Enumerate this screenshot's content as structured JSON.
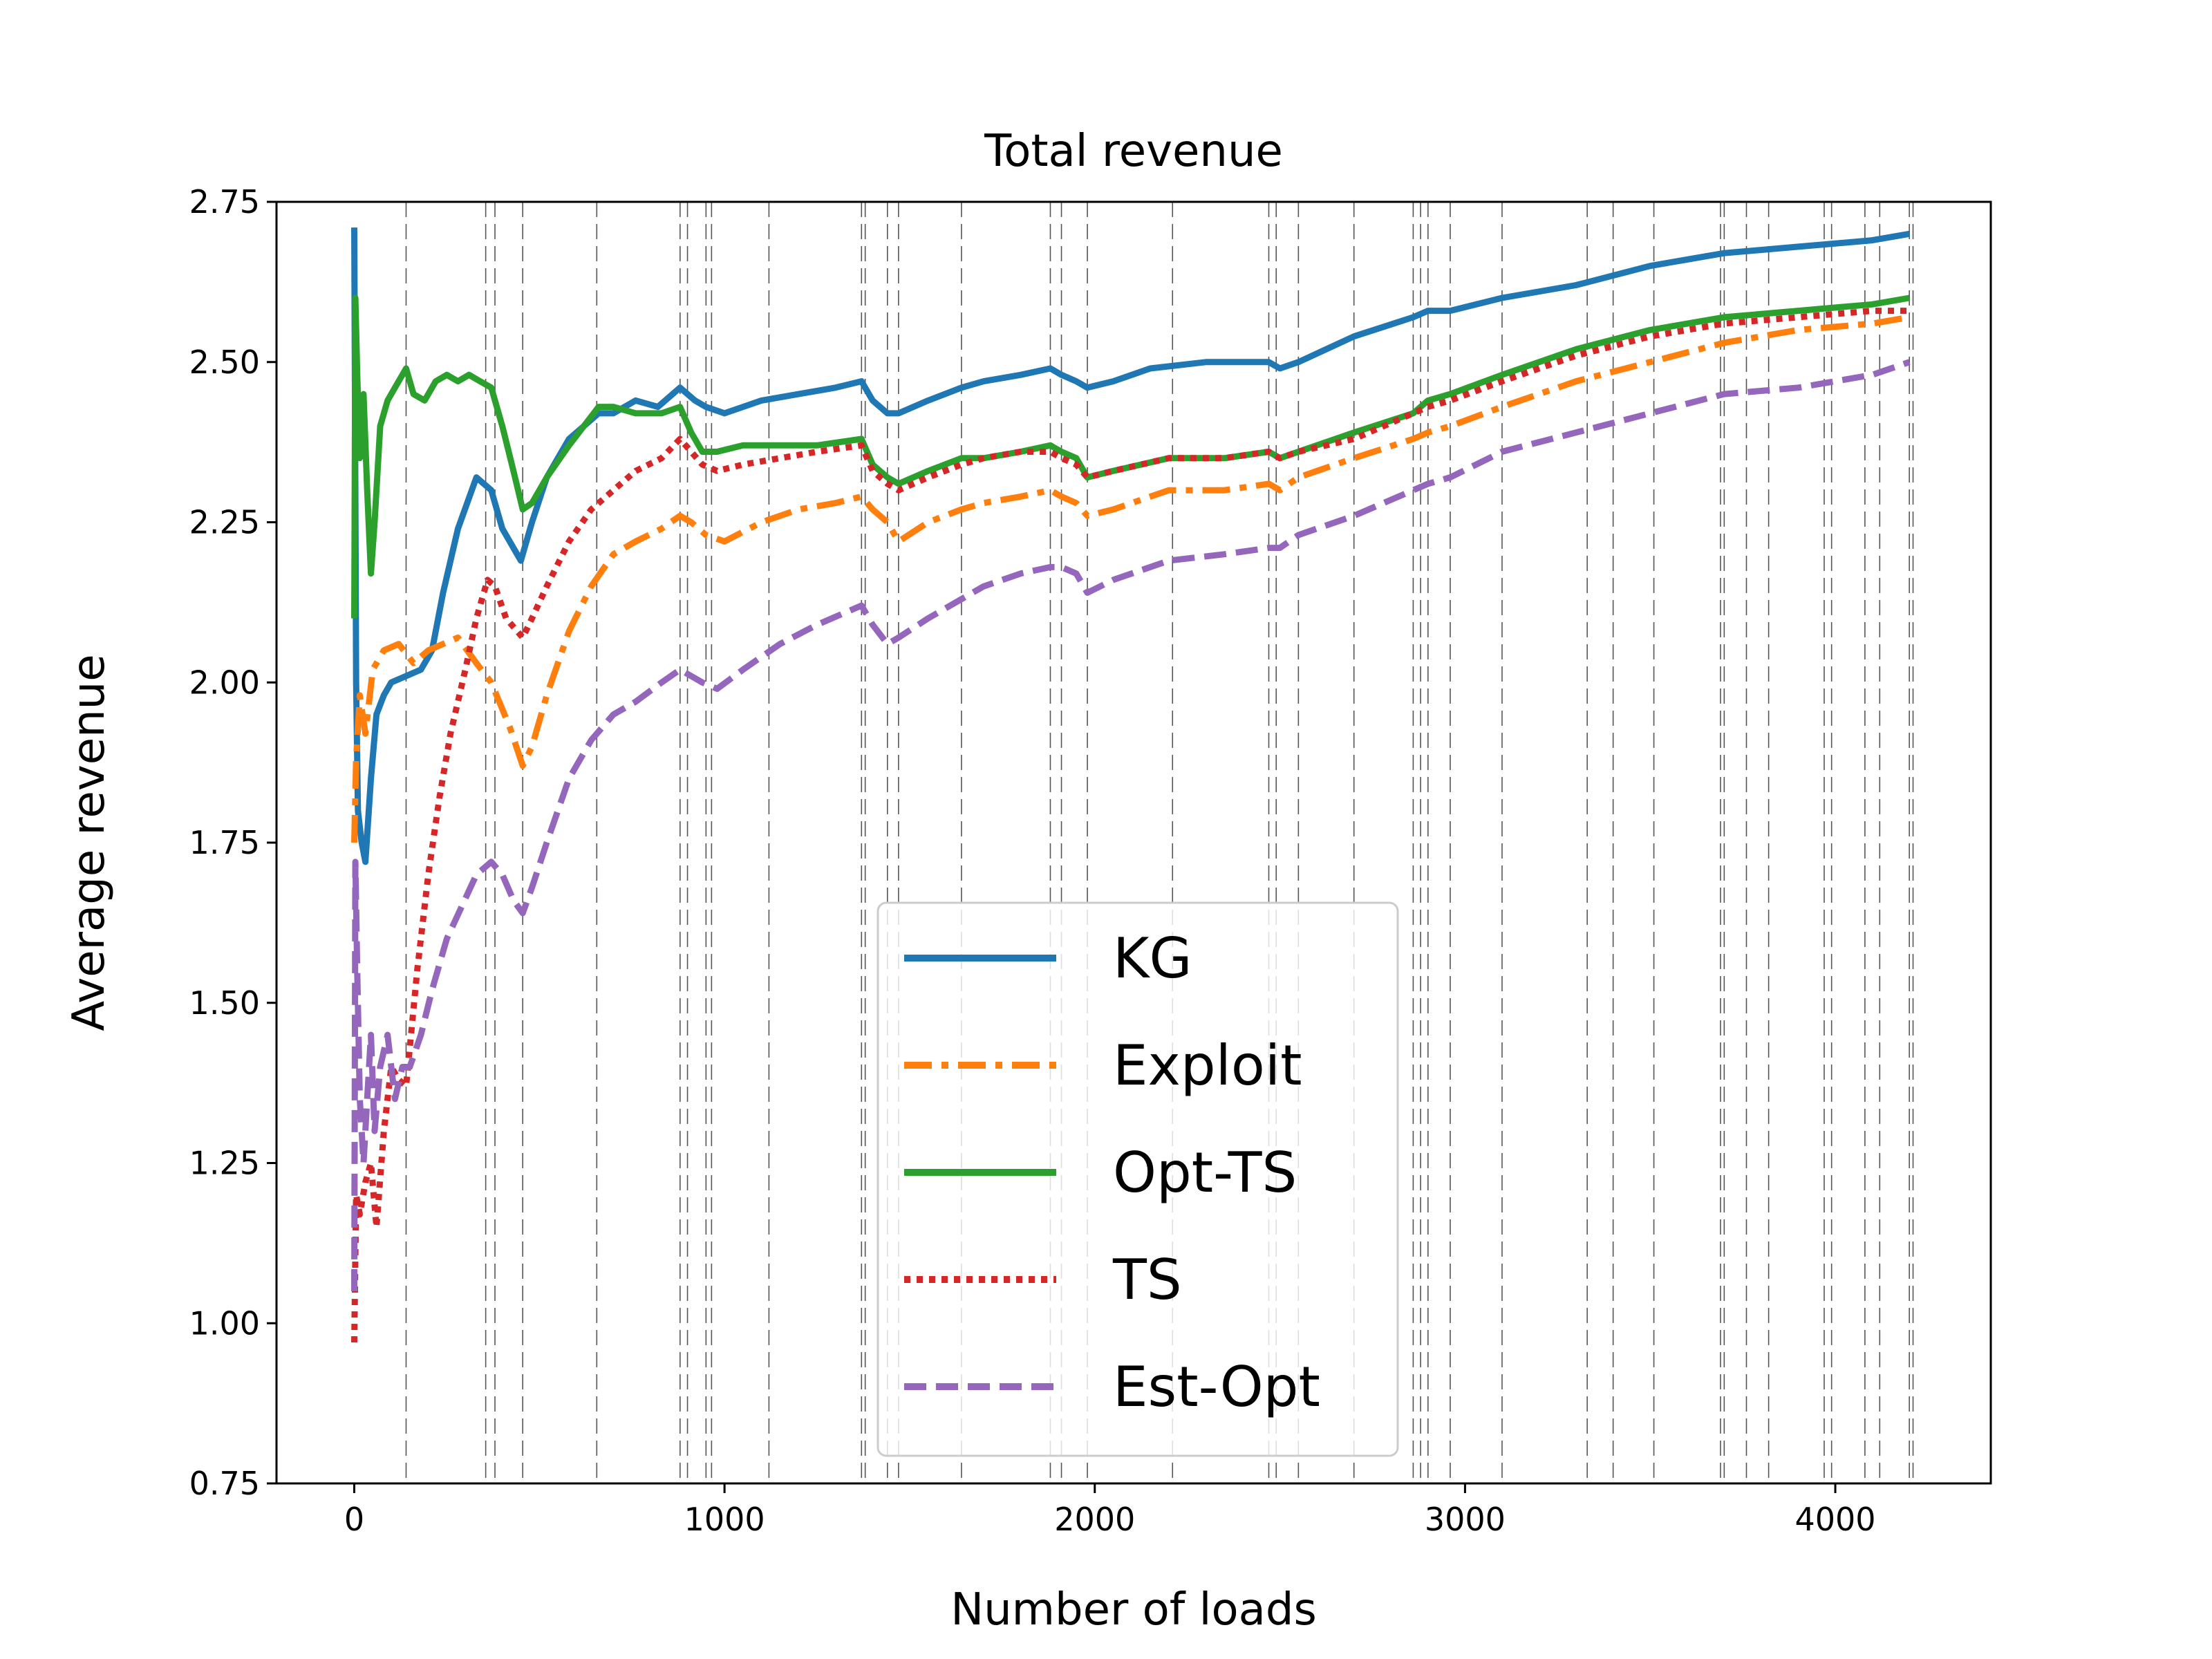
{
  "chart_data": {
    "type": "line",
    "title": "Total revenue",
    "xlabel": "Number of loads",
    "ylabel": "Average revenue",
    "xlim": [
      -210,
      4420
    ],
    "ylim": [
      0.75,
      2.75
    ],
    "xticks": [
      0,
      1000,
      2000,
      3000,
      4000
    ],
    "xtick_labels": [
      "0",
      "1000",
      "2000",
      "3000",
      "4000"
    ],
    "yticks": [
      0.75,
      1.0,
      1.25,
      1.5,
      1.75,
      2.0,
      2.25,
      2.5,
      2.75
    ],
    "ytick_labels": [
      "0.75",
      "1.00",
      "1.25",
      "1.50",
      "1.75",
      "2.00",
      "2.25",
      "2.50",
      "2.75"
    ],
    "vlines": [
      140,
      355,
      380,
      455,
      655,
      880,
      900,
      950,
      965,
      1120,
      1370,
      1380,
      1440,
      1470,
      1640,
      1880,
      1910,
      1980,
      2210,
      2470,
      2490,
      2550,
      2700,
      2860,
      2880,
      2900,
      2960,
      3100,
      3330,
      3400,
      3510,
      3690,
      3700,
      3760,
      3820,
      3970,
      3990,
      4080,
      4120,
      4200,
      4210
    ],
    "legend_position": "lower-right",
    "series": [
      {
        "name": "KG",
        "color": "#1f77b4",
        "style": "solid",
        "x": [
          0,
          5,
          10,
          20,
          30,
          45,
          60,
          80,
          100,
          140,
          180,
          210,
          240,
          280,
          330,
          370,
          400,
          450,
          480,
          520,
          580,
          620,
          660,
          700,
          760,
          820,
          880,
          900,
          920,
          950,
          1000,
          1100,
          1200,
          1300,
          1370,
          1400,
          1440,
          1470,
          1550,
          1640,
          1700,
          1800,
          1880,
          1910,
          1950,
          1980,
          2050,
          2150,
          2300,
          2470,
          2500,
          2550,
          2700,
          2860,
          2900,
          2960,
          3100,
          3300,
          3500,
          3700,
          3900,
          4100,
          4200
        ],
        "y": [
          2.71,
          2.0,
          1.8,
          1.75,
          1.72,
          1.85,
          1.95,
          1.98,
          2.0,
          2.01,
          2.02,
          2.05,
          2.14,
          2.24,
          2.32,
          2.3,
          2.24,
          2.19,
          2.25,
          2.32,
          2.38,
          2.4,
          2.42,
          2.42,
          2.44,
          2.43,
          2.46,
          2.45,
          2.44,
          2.43,
          2.42,
          2.44,
          2.45,
          2.46,
          2.47,
          2.44,
          2.42,
          2.42,
          2.44,
          2.46,
          2.47,
          2.48,
          2.49,
          2.48,
          2.47,
          2.46,
          2.47,
          2.49,
          2.5,
          2.5,
          2.49,
          2.5,
          2.54,
          2.57,
          2.58,
          2.58,
          2.6,
          2.62,
          2.65,
          2.67,
          2.68,
          2.69,
          2.7
        ]
      },
      {
        "name": "Exploit",
        "color": "#ff7f0e",
        "style": "dashdot",
        "x": [
          0,
          5,
          15,
          30,
          50,
          80,
          120,
          160,
          200,
          240,
          280,
          330,
          370,
          420,
          455,
          480,
          520,
          580,
          640,
          700,
          760,
          830,
          880,
          910,
          950,
          1000,
          1100,
          1200,
          1300,
          1370,
          1400,
          1440,
          1470,
          1550,
          1640,
          1700,
          1800,
          1880,
          1910,
          1950,
          1980,
          2050,
          2200,
          2350,
          2470,
          2500,
          2550,
          2700,
          2860,
          2900,
          2960,
          3100,
          3300,
          3500,
          3700,
          3900,
          4100,
          4200
        ],
        "y": [
          1.75,
          1.88,
          1.98,
          1.92,
          2.02,
          2.05,
          2.06,
          2.03,
          2.05,
          2.06,
          2.07,
          2.03,
          2.0,
          1.93,
          1.87,
          1.9,
          1.98,
          2.08,
          2.15,
          2.2,
          2.22,
          2.24,
          2.26,
          2.25,
          2.23,
          2.22,
          2.25,
          2.27,
          2.28,
          2.29,
          2.27,
          2.25,
          2.22,
          2.25,
          2.27,
          2.28,
          2.29,
          2.3,
          2.29,
          2.28,
          2.26,
          2.27,
          2.3,
          2.3,
          2.31,
          2.3,
          2.32,
          2.35,
          2.38,
          2.39,
          2.4,
          2.43,
          2.47,
          2.5,
          2.53,
          2.55,
          2.56,
          2.57
        ]
      },
      {
        "name": "Opt-TS",
        "color": "#2ca02c",
        "style": "solid",
        "x": [
          0,
          3,
          8,
          15,
          25,
          35,
          45,
          55,
          70,
          90,
          110,
          140,
          160,
          190,
          220,
          250,
          280,
          310,
          340,
          370,
          400,
          430,
          455,
          480,
          520,
          580,
          620,
          660,
          700,
          760,
          830,
          880,
          910,
          940,
          980,
          1050,
          1150,
          1250,
          1370,
          1400,
          1440,
          1470,
          1550,
          1640,
          1700,
          1800,
          1880,
          1910,
          1950,
          1980,
          2050,
          2200,
          2350,
          2470,
          2500,
          2550,
          2700,
          2860,
          2900,
          2960,
          3100,
          3300,
          3500,
          3700,
          3900,
          4100,
          4200
        ],
        "y": [
          2.1,
          2.6,
          2.48,
          2.35,
          2.45,
          2.3,
          2.17,
          2.25,
          2.4,
          2.44,
          2.46,
          2.49,
          2.45,
          2.44,
          2.47,
          2.48,
          2.47,
          2.48,
          2.47,
          2.46,
          2.4,
          2.33,
          2.27,
          2.28,
          2.32,
          2.37,
          2.4,
          2.43,
          2.43,
          2.42,
          2.42,
          2.43,
          2.39,
          2.36,
          2.36,
          2.37,
          2.37,
          2.37,
          2.38,
          2.34,
          2.32,
          2.31,
          2.33,
          2.35,
          2.35,
          2.36,
          2.37,
          2.36,
          2.35,
          2.32,
          2.33,
          2.35,
          2.35,
          2.36,
          2.35,
          2.36,
          2.39,
          2.42,
          2.44,
          2.45,
          2.48,
          2.52,
          2.55,
          2.57,
          2.58,
          2.59,
          2.6
        ]
      },
      {
        "name": "TS",
        "color": "#d62728",
        "style": "dotted",
        "x": [
          0,
          5,
          15,
          30,
          45,
          60,
          80,
          100,
          120,
          140,
          170,
          200,
          230,
          260,
          300,
          330,
          360,
          380,
          410,
          455,
          480,
          520,
          580,
          640,
          700,
          760,
          830,
          880,
          910,
          940,
          980,
          1050,
          1150,
          1250,
          1370,
          1400,
          1440,
          1470,
          1550,
          1640,
          1700,
          1800,
          1880,
          1910,
          1950,
          1980,
          2050,
          2200,
          2350,
          2470,
          2500,
          2550,
          2700,
          2860,
          2900,
          2960,
          3100,
          3300,
          3500,
          3700,
          3900,
          4100,
          4200
        ],
        "y": [
          0.97,
          1.2,
          1.17,
          1.22,
          1.25,
          1.15,
          1.3,
          1.4,
          1.38,
          1.37,
          1.55,
          1.7,
          1.82,
          1.92,
          2.02,
          2.1,
          2.16,
          2.15,
          2.1,
          2.07,
          2.1,
          2.15,
          2.22,
          2.27,
          2.3,
          2.33,
          2.35,
          2.38,
          2.36,
          2.34,
          2.33,
          2.34,
          2.35,
          2.36,
          2.37,
          2.33,
          2.31,
          2.3,
          2.32,
          2.34,
          2.35,
          2.36,
          2.36,
          2.35,
          2.34,
          2.32,
          2.33,
          2.35,
          2.35,
          2.36,
          2.35,
          2.36,
          2.38,
          2.42,
          2.43,
          2.44,
          2.47,
          2.51,
          2.54,
          2.56,
          2.57,
          2.58,
          2.58
        ]
      },
      {
        "name": "Est-Opt",
        "color": "#9467bd",
        "style": "dashed",
        "x": [
          0,
          3,
          8,
          15,
          25,
          35,
          45,
          55,
          70,
          90,
          110,
          130,
          150,
          180,
          210,
          250,
          290,
          330,
          370,
          400,
          430,
          455,
          480,
          520,
          580,
          640,
          700,
          760,
          830,
          880,
          910,
          940,
          980,
          1050,
          1150,
          1250,
          1370,
          1400,
          1440,
          1470,
          1550,
          1640,
          1700,
          1800,
          1880,
          1910,
          1950,
          1980,
          2050,
          2200,
          2350,
          2470,
          2500,
          2550,
          2700,
          2860,
          2900,
          2960,
          3100,
          3300,
          3500,
          3700,
          3900,
          4100,
          4200
        ],
        "y": [
          1.05,
          1.72,
          1.55,
          1.35,
          1.25,
          1.35,
          1.45,
          1.3,
          1.4,
          1.45,
          1.35,
          1.4,
          1.4,
          1.45,
          1.52,
          1.6,
          1.65,
          1.7,
          1.72,
          1.7,
          1.66,
          1.64,
          1.68,
          1.75,
          1.85,
          1.91,
          1.95,
          1.97,
          2.0,
          2.02,
          2.01,
          2.0,
          1.99,
          2.02,
          2.06,
          2.09,
          2.12,
          2.09,
          2.06,
          2.07,
          2.1,
          2.13,
          2.15,
          2.17,
          2.18,
          2.18,
          2.17,
          2.14,
          2.16,
          2.19,
          2.2,
          2.21,
          2.21,
          2.23,
          2.26,
          2.3,
          2.31,
          2.32,
          2.36,
          2.39,
          2.42,
          2.45,
          2.46,
          2.48,
          2.5
        ]
      }
    ]
  }
}
